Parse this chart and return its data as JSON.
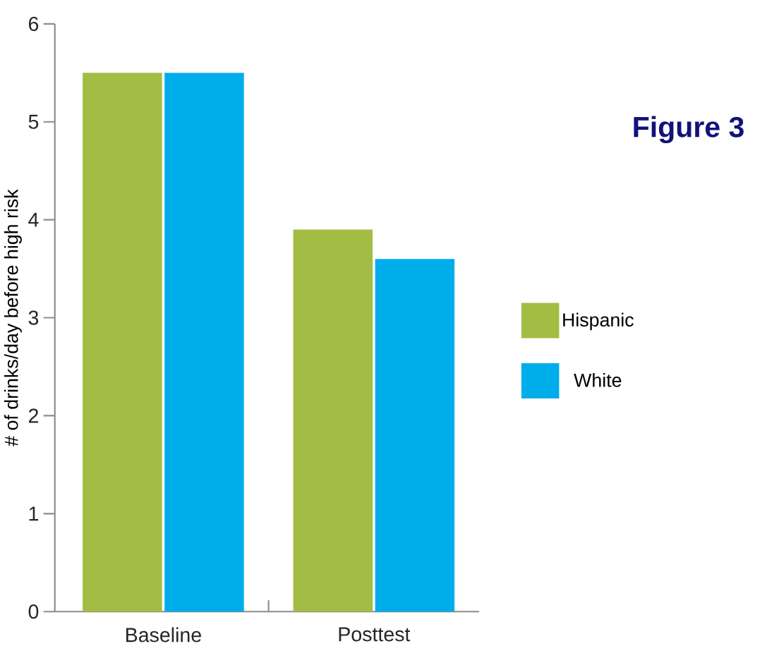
{
  "chart_data": {
    "type": "bar",
    "title": "Figure 3",
    "ylabel": "# of drinks/day before high risk",
    "categories": [
      "Baseline",
      "Posttest"
    ],
    "series": [
      {
        "name": "Hispanic",
        "color": "#a3bd44",
        "values": [
          5.5,
          3.9
        ]
      },
      {
        "name": "White",
        "color": "#00adeb",
        "values": [
          5.5,
          3.6
        ]
      }
    ],
    "ylim": [
      0,
      6
    ],
    "yticks": [
      0,
      1,
      2,
      3,
      4,
      5,
      6
    ],
    "legend": "right"
  }
}
